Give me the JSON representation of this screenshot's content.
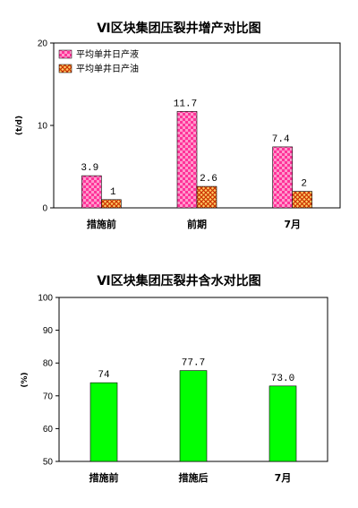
{
  "chart_data": [
    {
      "type": "bar",
      "title": "Ⅵ区块集团压裂井增产对比图",
      "ylabel": "(t/d)",
      "ylim": [
        0,
        20
      ],
      "yticks": [
        "0",
        "10",
        "20"
      ],
      "categories": [
        "措施前",
        "前期",
        "7月"
      ],
      "series": [
        {
          "name": "平均单井日产液",
          "values": [
            3.9,
            11.7,
            7.4
          ],
          "labels": [
            "3.9",
            "11.7",
            "7.4"
          ],
          "color": "#ff99cc"
        },
        {
          "name": "平均单井日产油",
          "values": [
            1,
            2.6,
            2
          ],
          "labels": [
            "1",
            "2.6",
            "2"
          ],
          "color": "#ff9900"
        }
      ],
      "legend": "top-left"
    },
    {
      "type": "bar",
      "title": "Ⅵ区块集团压裂井含水对比图",
      "ylabel": "(%)",
      "ylim": [
        50,
        100
      ],
      "yticks": [
        "50",
        "60",
        "70",
        "80",
        "90",
        "100"
      ],
      "categories": [
        "措施前",
        "措施后",
        "7月"
      ],
      "series": [
        {
          "values": [
            74,
            77.7,
            73.0
          ],
          "labels": [
            "74",
            "77.7",
            "73.0"
          ],
          "color": "#00ff00"
        }
      ]
    }
  ]
}
